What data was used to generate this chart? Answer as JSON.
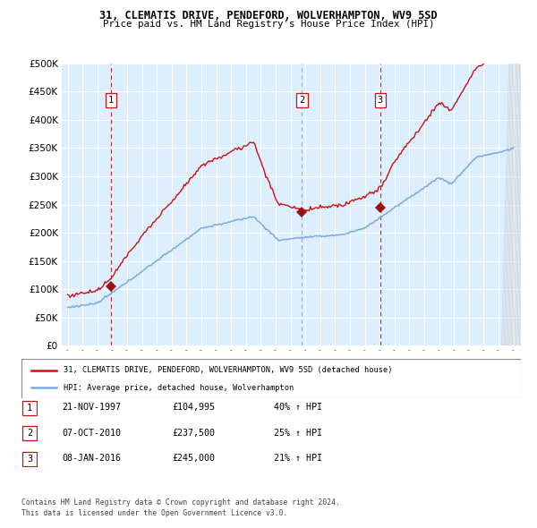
{
  "title1": "31, CLEMATIS DRIVE, PENDEFORD, WOLVERHAMPTON, WV9 5SD",
  "title2": "Price paid vs. HM Land Registry's House Price Index (HPI)",
  "legend_line1": "31, CLEMATIS DRIVE, PENDEFORD, WOLVERHAMPTON, WV9 5SD (detached house)",
  "legend_line2": "HPI: Average price, detached house, Wolverhampton",
  "sale_points": [
    {
      "label": "1",
      "date": 1997.9,
      "price": 104995
    },
    {
      "label": "2",
      "date": 2010.77,
      "price": 237500
    },
    {
      "label": "3",
      "date": 2016.03,
      "price": 245000
    }
  ],
  "table_rows": [
    {
      "num": "1",
      "date": "21-NOV-1997",
      "price": "£104,995",
      "change": "40% ↑ HPI"
    },
    {
      "num": "2",
      "date": "07-OCT-2010",
      "price": "£237,500",
      "change": "25% ↑ HPI"
    },
    {
      "num": "3",
      "date": "08-JAN-2016",
      "price": "£245,000",
      "change": "21% ↑ HPI"
    }
  ],
  "footer1": "Contains HM Land Registry data © Crown copyright and database right 2024.",
  "footer2": "This data is licensed under the Open Government Licence v3.0.",
  "hpi_color": "#7aaadd",
  "price_color": "#cc1111",
  "marker_color": "#991111",
  "bg_color": "#ddeeff",
  "grid_color": "#ccddee",
  "vline1_color": "#cc1111",
  "vline2_color": "#99aabb",
  "ylim": [
    0,
    500000
  ],
  "yticks": [
    0,
    50000,
    100000,
    150000,
    200000,
    250000,
    300000,
    350000,
    400000,
    450000,
    500000
  ],
  "xlim_start": 1994.6,
  "xlim_end": 2025.5
}
